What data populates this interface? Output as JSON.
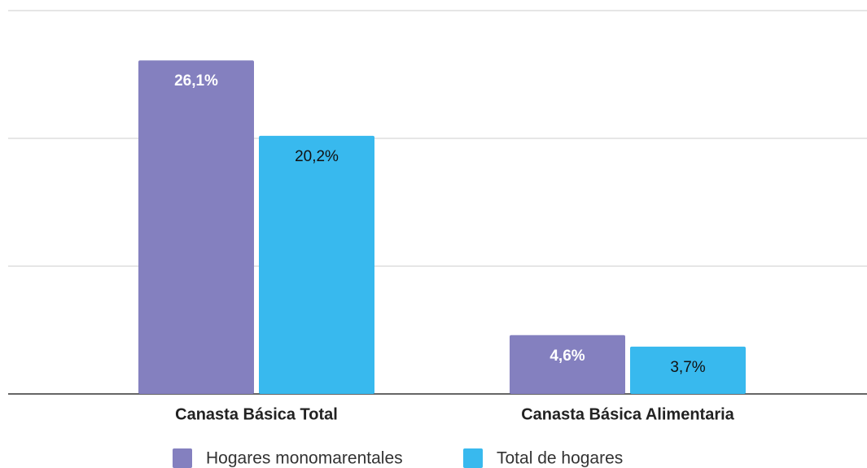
{
  "chart_data": {
    "type": "bar",
    "categories": [
      "Canasta Básica Total",
      "Canasta Básica Alimentaria"
    ],
    "series": [
      {
        "name": "Hogares monomarentales",
        "color": "#8480bf",
        "values": [
          26.1,
          4.6
        ],
        "value_labels": [
          "26,1%",
          "4,6%"
        ]
      },
      {
        "name": "Total de hogares",
        "color": "#38b9ee",
        "values": [
          20.2,
          3.7
        ],
        "value_labels": [
          "20,2%",
          "3,7%"
        ]
      }
    ],
    "ylim": [
      0,
      30
    ],
    "yticks": [
      0,
      10,
      20,
      30
    ],
    "grid": true
  }
}
